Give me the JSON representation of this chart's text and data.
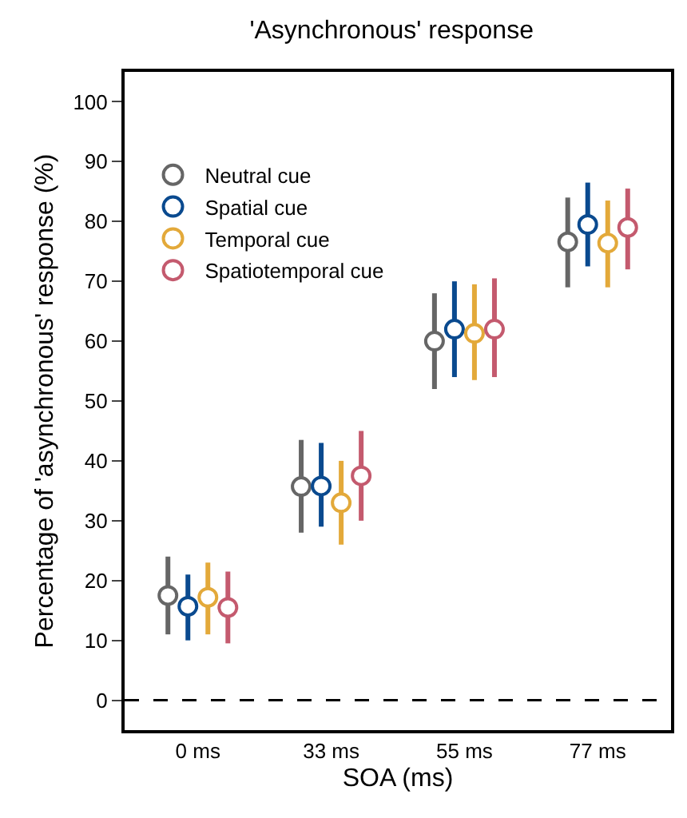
{
  "chart_data": {
    "type": "scatter",
    "title": "'Asynchronous' response",
    "xlabel": "SOA (ms)",
    "ylabel": "Percentage of 'asynchronous' response (%)",
    "categories": [
      "0 ms",
      "33 ms",
      "55 ms",
      "77 ms"
    ],
    "series": [
      {
        "name": "Neutral cue",
        "color": "#666666",
        "values": [
          17.5,
          35.7,
          60,
          76.6
        ],
        "errors": [
          [
            11,
            24
          ],
          [
            28,
            43.5
          ],
          [
            52,
            68
          ],
          [
            69,
            84
          ]
        ]
      },
      {
        "name": "Spatial cue",
        "color": "#0a4a8f",
        "values": [
          15.7,
          35.8,
          62,
          79.5
        ],
        "errors": [
          [
            10,
            21
          ],
          [
            29,
            43
          ],
          [
            54,
            70
          ],
          [
            72.5,
            86.5
          ]
        ]
      },
      {
        "name": "Temporal cue",
        "color": "#e3a93a",
        "values": [
          17.2,
          33,
          61.3,
          76.4
        ],
        "errors": [
          [
            11,
            23
          ],
          [
            26,
            40
          ],
          [
            53.5,
            69.5
          ],
          [
            69,
            83.5
          ]
        ]
      },
      {
        "name": "Spatiotemporal cue",
        "color": "#c45a6e",
        "values": [
          15.5,
          37.5,
          62,
          79
        ],
        "errors": [
          [
            9.5,
            21.5
          ],
          [
            30,
            45
          ],
          [
            54,
            70.5
          ],
          [
            72,
            85.5
          ]
        ]
      }
    ],
    "ylim": [
      -5,
      105
    ],
    "yticks": [
      0,
      10,
      20,
      30,
      40,
      50,
      60,
      70,
      80,
      90,
      100
    ],
    "ref_lines": [
      {
        "axis": "y",
        "value": 0,
        "color": "#000000",
        "line_style": "dashed"
      }
    ],
    "marker": "circle",
    "legend": "top left"
  }
}
